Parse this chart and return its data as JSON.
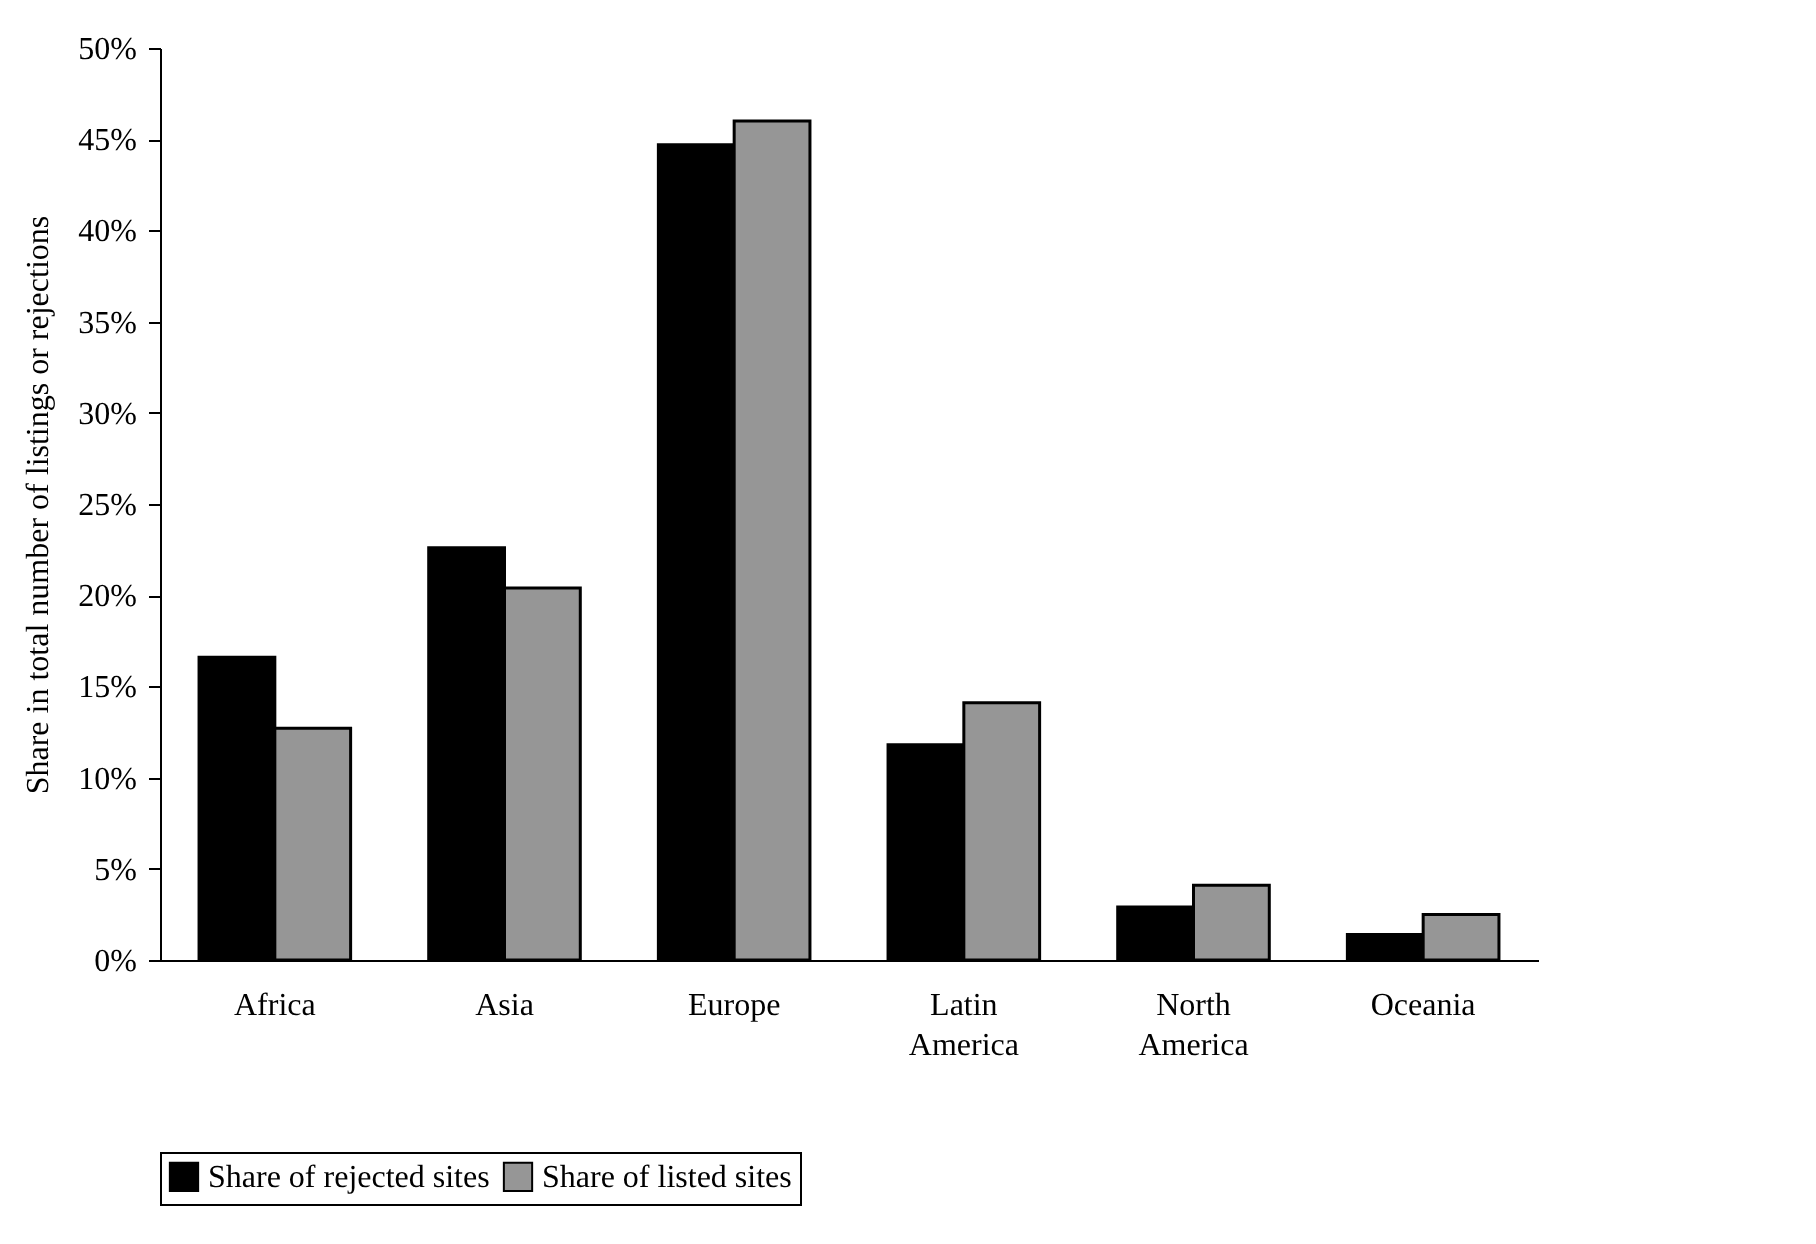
{
  "chart_data": {
    "type": "bar",
    "ylabel": "Share in total number of listings or rejections",
    "categories": [
      "Africa",
      "Asia",
      "Europe",
      "Latin America",
      "North America",
      "Oceania"
    ],
    "series": [
      {
        "name": "Share of rejected sites",
        "color": "#000000",
        "values": [
          16.6,
          22.6,
          44.7,
          11.8,
          2.9,
          1.4
        ]
      },
      {
        "name": "Share of listed sites",
        "color": "#969696",
        "values": [
          12.7,
          20.4,
          46.0,
          14.1,
          4.1,
          2.5
        ]
      }
    ],
    "ylim": [
      0,
      50
    ],
    "yticks": [
      {
        "value": 0,
        "label": "0%"
      },
      {
        "value": 5,
        "label": "5%"
      },
      {
        "value": 10,
        "label": "10%"
      },
      {
        "value": 15,
        "label": "15%"
      },
      {
        "value": 20,
        "label": "20%"
      },
      {
        "value": 25,
        "label": "25%"
      },
      {
        "value": 30,
        "label": "30%"
      },
      {
        "value": 35,
        "label": "35%"
      },
      {
        "value": 40,
        "label": "40%"
      },
      {
        "value": 45,
        "label": "45%"
      },
      {
        "value": 50,
        "label": "50%"
      }
    ],
    "grid": false,
    "legend": "bottom"
  }
}
